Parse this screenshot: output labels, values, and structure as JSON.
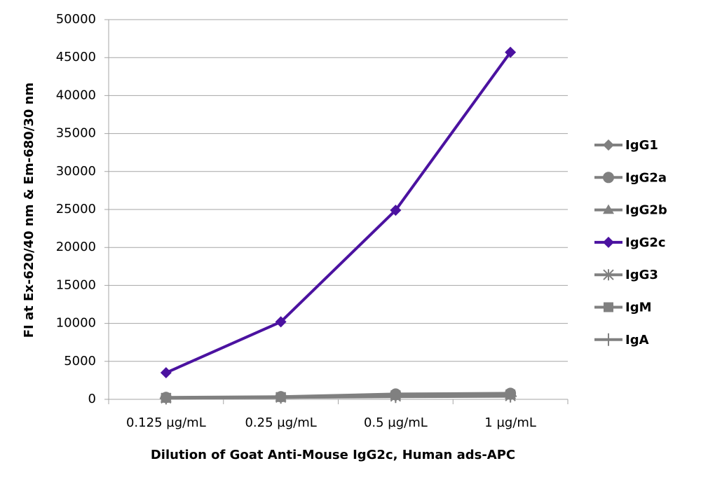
{
  "chart_data": {
    "type": "line",
    "x_label": "Dilution of Goat Anti-Mouse IgG2c, Human ads-APC",
    "y_label": "FI at Ex-620/40 nm & Em-680/30 nm",
    "categories": [
      "0.125 µg/mL",
      "0.25 µg/mL",
      "0.5 µg/mL",
      "1 µg/mL"
    ],
    "ylim": [
      0,
      50000
    ],
    "yticks": [
      0,
      5000,
      10000,
      15000,
      20000,
      25000,
      30000,
      35000,
      40000,
      45000,
      50000
    ],
    "grid": true,
    "legend": "right",
    "series": [
      {
        "name": "IgG1",
        "color": "#808080",
        "marker": "diamond",
        "values": [
          200,
          300,
          450,
          550
        ]
      },
      {
        "name": "IgG2a",
        "color": "#808080",
        "marker": "circle",
        "values": [
          250,
          350,
          700,
          800
        ]
      },
      {
        "name": "IgG2b",
        "color": "#808080",
        "marker": "triangle",
        "values": [
          200,
          300,
          500,
          600
        ]
      },
      {
        "name": "IgG2c",
        "color": "#4b12a0",
        "marker": "diamond",
        "values": [
          3500,
          10200,
          24900,
          45700
        ]
      },
      {
        "name": "IgG3",
        "color": "#808080",
        "marker": "star",
        "values": [
          150,
          250,
          400,
          450
        ]
      },
      {
        "name": "IgM",
        "color": "#808080",
        "marker": "square",
        "values": [
          200,
          300,
          550,
          650
        ]
      },
      {
        "name": "IgA",
        "color": "#808080",
        "marker": "plus",
        "values": [
          150,
          250,
          350,
          400
        ]
      }
    ]
  }
}
